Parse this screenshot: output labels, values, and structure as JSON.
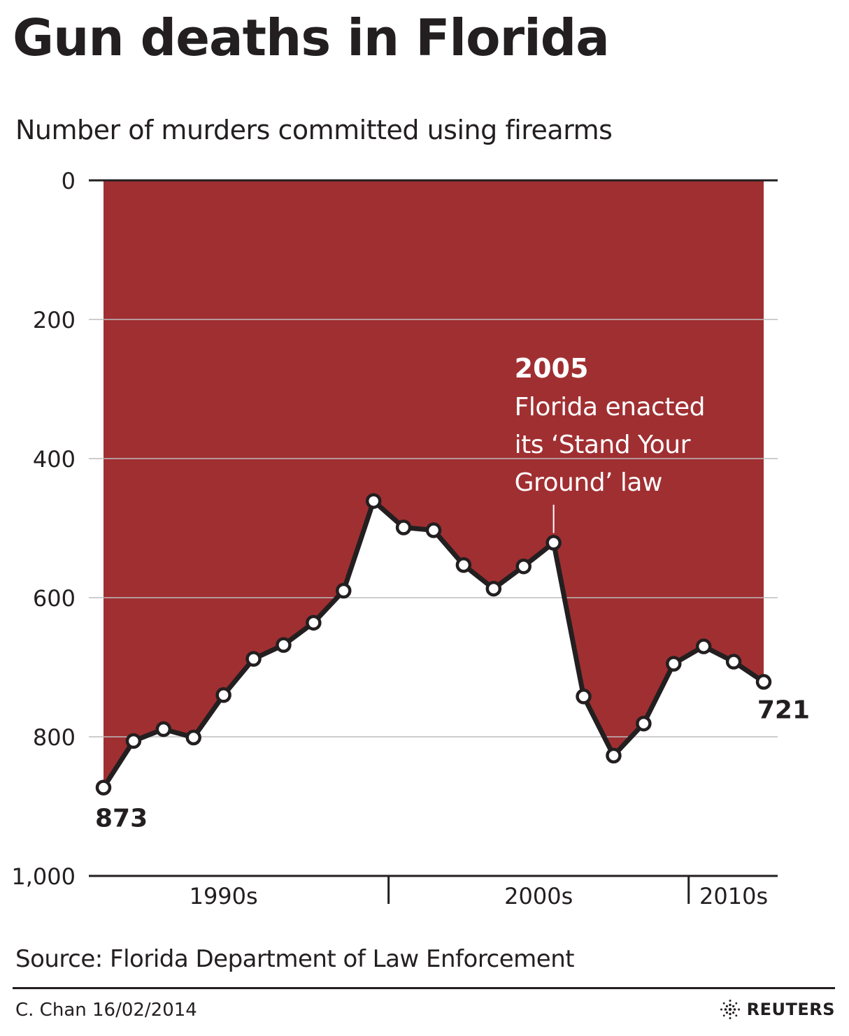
{
  "header": {
    "title": "Gun deaths in Florida",
    "subtitle": "Number of murders committed using firearms"
  },
  "footer": {
    "source": "Source: Florida Department of Law Enforcement",
    "credit": "C. Chan  16/02/2014",
    "brand": "REUTERS",
    "brand_icon": "reuters-dot-logo-icon"
  },
  "colors": {
    "fill": "#a02f32",
    "line": "#231f20",
    "marker_fill": "#ffffff",
    "grid": "#bdbdbd",
    "annotation_text": "#ffffff"
  },
  "chart_data": {
    "type": "area",
    "title": "Gun deaths in Florida",
    "subtitle": "Number of murders committed using firearms",
    "y_inverted": true,
    "ylim": [
      0,
      1000
    ],
    "y_ticks": [
      "0",
      "200",
      "400",
      "600",
      "800",
      "1,000"
    ],
    "y_tick_values": [
      0,
      200,
      400,
      600,
      800,
      1000
    ],
    "x": [
      1990,
      1991,
      1992,
      1993,
      1994,
      1995,
      1996,
      1997,
      1998,
      1999,
      2000,
      2001,
      2002,
      2003,
      2004,
      2005,
      2006,
      2007,
      2008,
      2009,
      2010,
      2011,
      2012
    ],
    "series": [
      {
        "values": [
          873,
          806,
          789,
          801,
          740,
          688,
          668,
          636,
          590,
          461,
          499,
          503,
          553,
          587,
          555,
          521,
          742,
          827,
          781,
          695,
          670,
          692,
          721
        ]
      }
    ],
    "decade_labels": [
      "1990s",
      "2000s",
      "2010s"
    ],
    "decade_label_x": [
      1994,
      2004.5,
      2011
    ],
    "decade_dividers": [
      2000,
      2010
    ],
    "annotations": {
      "start_value": "873",
      "end_value": "721",
      "event_year": "2005",
      "event_lines": [
        "Florida enacted",
        "its ‘Stand Your",
        "Ground’ law"
      ],
      "event_x": 2005
    },
    "grid": true
  }
}
